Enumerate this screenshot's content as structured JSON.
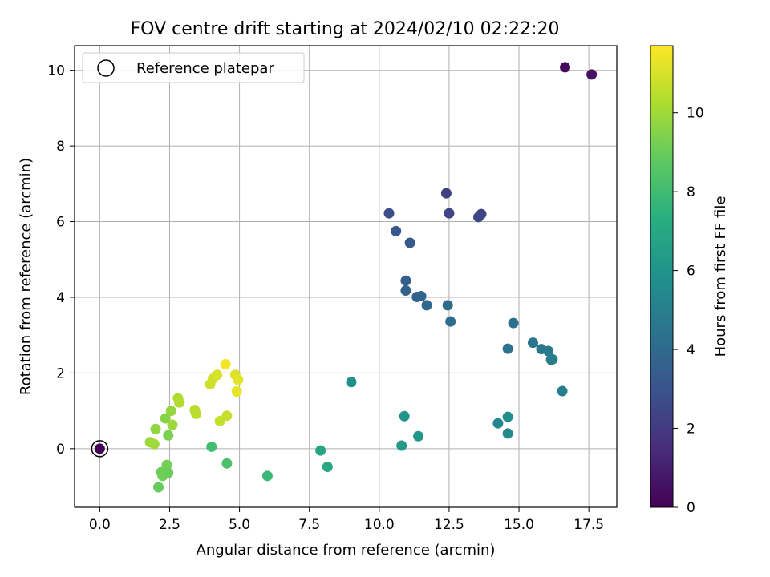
{
  "chart_data": {
    "type": "scatter",
    "title": "FOV centre drift starting at 2024/02/10 02:22:20",
    "xlabel": "Angular distance from reference (arcmin)",
    "ylabel": "Rotation from reference (arcmin)",
    "xlim": [
      -0.9,
      18.5
    ],
    "ylim": [
      -1.55,
      10.65
    ],
    "xticks": [
      0.0,
      2.5,
      5.0,
      7.5,
      10.0,
      12.5,
      15.0,
      17.5
    ],
    "xtick_labels": [
      "0.0",
      "2.5",
      "5.0",
      "7.5",
      "10.0",
      "12.5",
      "15.0",
      "17.5"
    ],
    "yticks": [
      0,
      2,
      4,
      6,
      8,
      10
    ],
    "ytick_labels": [
      "0",
      "2",
      "4",
      "6",
      "8",
      "10"
    ],
    "grid": true,
    "legend": {
      "position": "top-left",
      "entries": [
        {
          "label": "Reference platepar",
          "marker": "open-circle"
        }
      ]
    },
    "colorbar": {
      "label": "Hours from first FF file",
      "colormap": "viridis",
      "range": [
        0,
        11.7
      ],
      "ticks": [
        0,
        2,
        4,
        6,
        8,
        10
      ],
      "tick_labels": [
        "0",
        "2",
        "4",
        "6",
        "8",
        "10"
      ]
    },
    "reference_point": {
      "x": 0.0,
      "y": 0.0,
      "h": 0.0
    },
    "points": [
      {
        "x": 16.65,
        "y": 10.08,
        "h": 0.3
      },
      {
        "x": 17.6,
        "y": 9.89,
        "h": 0.5
      },
      {
        "x": 12.4,
        "y": 6.75,
        "h": 2.2
      },
      {
        "x": 12.5,
        "y": 6.22,
        "h": 2.4
      },
      {
        "x": 13.65,
        "y": 6.2,
        "h": 2.3
      },
      {
        "x": 13.55,
        "y": 6.12,
        "h": 2.5
      },
      {
        "x": 10.35,
        "y": 6.22,
        "h": 2.8
      },
      {
        "x": 10.6,
        "y": 5.75,
        "h": 3.2
      },
      {
        "x": 11.1,
        "y": 5.44,
        "h": 3.3
      },
      {
        "x": 10.95,
        "y": 4.44,
        "h": 3.5
      },
      {
        "x": 10.95,
        "y": 4.18,
        "h": 3.6
      },
      {
        "x": 11.35,
        "y": 4.01,
        "h": 3.7
      },
      {
        "x": 11.5,
        "y": 4.03,
        "h": 3.8
      },
      {
        "x": 11.7,
        "y": 3.79,
        "h": 3.9
      },
      {
        "x": 12.45,
        "y": 3.79,
        "h": 4.0
      },
      {
        "x": 12.55,
        "y": 3.36,
        "h": 4.1
      },
      {
        "x": 14.8,
        "y": 3.32,
        "h": 4.3
      },
      {
        "x": 14.6,
        "y": 2.64,
        "h": 4.4
      },
      {
        "x": 15.5,
        "y": 2.8,
        "h": 4.5
      },
      {
        "x": 15.8,
        "y": 2.63,
        "h": 4.6
      },
      {
        "x": 16.05,
        "y": 2.58,
        "h": 4.7
      },
      {
        "x": 16.15,
        "y": 2.35,
        "h": 4.8
      },
      {
        "x": 16.2,
        "y": 2.36,
        "h": 4.9
      },
      {
        "x": 16.55,
        "y": 1.52,
        "h": 5.0
      },
      {
        "x": 14.25,
        "y": 0.67,
        "h": 5.4
      },
      {
        "x": 14.6,
        "y": 0.84,
        "h": 5.6
      },
      {
        "x": 14.6,
        "y": 0.4,
        "h": 5.5
      },
      {
        "x": 9.0,
        "y": 1.76,
        "h": 5.8
      },
      {
        "x": 10.9,
        "y": 0.86,
        "h": 6.0
      },
      {
        "x": 11.4,
        "y": 0.33,
        "h": 6.1
      },
      {
        "x": 10.8,
        "y": 0.08,
        "h": 6.3
      },
      {
        "x": 7.9,
        "y": -0.05,
        "h": 6.8
      },
      {
        "x": 8.15,
        "y": -0.48,
        "h": 7.0
      },
      {
        "x": 6.0,
        "y": -0.72,
        "h": 7.8
      },
      {
        "x": 4.0,
        "y": 0.05,
        "h": 8.1
      },
      {
        "x": 4.55,
        "y": -0.39,
        "h": 8.3
      },
      {
        "x": 2.1,
        "y": -1.02,
        "h": 8.9
      },
      {
        "x": 2.2,
        "y": -0.62,
        "h": 9.0
      },
      {
        "x": 2.25,
        "y": -0.72,
        "h": 9.1
      },
      {
        "x": 2.4,
        "y": -0.43,
        "h": 9.2
      },
      {
        "x": 2.45,
        "y": -0.64,
        "h": 9.0
      },
      {
        "x": 2.45,
        "y": 0.35,
        "h": 9.3
      },
      {
        "x": 2.35,
        "y": 0.8,
        "h": 9.5
      },
      {
        "x": 2.0,
        "y": 0.52,
        "h": 9.7
      },
      {
        "x": 1.8,
        "y": 0.17,
        "h": 9.9
      },
      {
        "x": 1.95,
        "y": 0.12,
        "h": 10.0
      },
      {
        "x": 2.55,
        "y": 1.0,
        "h": 9.8
      },
      {
        "x": 2.6,
        "y": 0.63,
        "h": 9.9
      },
      {
        "x": 2.8,
        "y": 1.33,
        "h": 10.2
      },
      {
        "x": 2.85,
        "y": 1.22,
        "h": 10.3
      },
      {
        "x": 3.4,
        "y": 1.02,
        "h": 10.4
      },
      {
        "x": 3.45,
        "y": 0.92,
        "h": 10.5
      },
      {
        "x": 4.3,
        "y": 0.73,
        "h": 10.6
      },
      {
        "x": 4.55,
        "y": 0.87,
        "h": 10.7
      },
      {
        "x": 3.95,
        "y": 1.7,
        "h": 10.8
      },
      {
        "x": 4.05,
        "y": 1.85,
        "h": 10.9
      },
      {
        "x": 4.2,
        "y": 1.95,
        "h": 11.0
      },
      {
        "x": 4.5,
        "y": 2.23,
        "h": 11.5
      },
      {
        "x": 4.85,
        "y": 1.95,
        "h": 11.1
      },
      {
        "x": 4.95,
        "y": 1.82,
        "h": 11.2
      },
      {
        "x": 4.9,
        "y": 1.51,
        "h": 11.3
      }
    ]
  }
}
